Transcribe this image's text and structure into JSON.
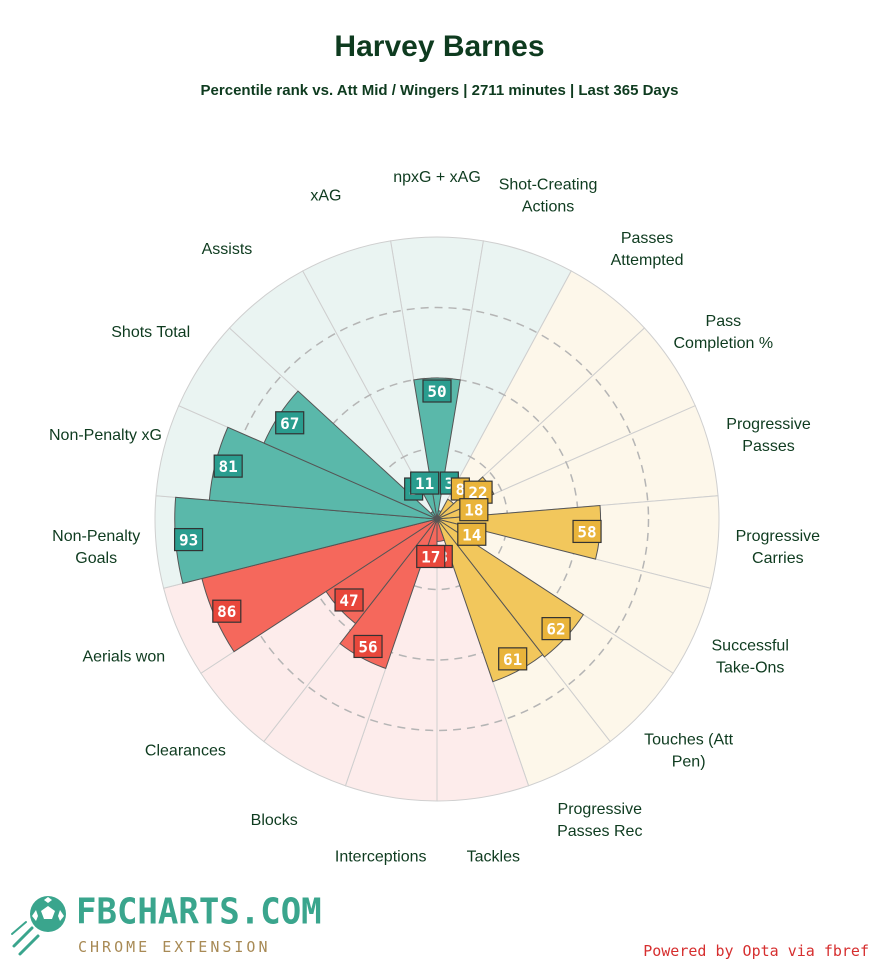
{
  "header": {
    "title": "Harvey Barnes",
    "subtitle": "Percentile rank vs. Att Mid / Wingers | 2711 minutes | Last 365 Days"
  },
  "chart_data": {
    "type": "polar-bar",
    "scale": [
      0,
      100
    ],
    "grid_rings": [
      25,
      50,
      75
    ],
    "groups": {
      "attacking": {
        "fill": "#5ab8aa",
        "bg": "#eaf4f2",
        "label_box": "#2a9d8f"
      },
      "possession": {
        "fill": "#f2c75c",
        "bg": "#fdf7ea",
        "label_box": "#e9b43b"
      },
      "defending": {
        "fill": "#f5685c",
        "bg": "#fdeceb",
        "label_box": "#e8473b"
      }
    },
    "categories": [
      {
        "label": "npxG + xAG",
        "value": 50,
        "group": "attacking"
      },
      {
        "label": "Shot-Creating\nActions",
        "value": 3,
        "group": "attacking"
      },
      {
        "label": "Passes\nAttempted",
        "value": 8,
        "group": "possession"
      },
      {
        "label": "Pass\nCompletion %",
        "value": 22,
        "group": "possession"
      },
      {
        "label": "Progressive\nPasses",
        "value": 18,
        "group": "possession"
      },
      {
        "label": "Progressive\nCarries",
        "value": 58,
        "group": "possession"
      },
      {
        "label": "Successful\nTake-Ons",
        "value": 14,
        "group": "possession"
      },
      {
        "label": "Touches (Att\nPen)",
        "value": 62,
        "group": "possession"
      },
      {
        "label": "Progressive\nPasses Rec",
        "value": 61,
        "group": "possession"
      },
      {
        "label": "Tackles",
        "value": 8,
        "group": "defending"
      },
      {
        "label": "Interceptions",
        "value": 17,
        "group": "defending"
      },
      {
        "label": "Blocks",
        "value": 56,
        "group": "defending"
      },
      {
        "label": "Clearances",
        "value": 47,
        "group": "defending"
      },
      {
        "label": "Aerials won",
        "value": 86,
        "group": "defending"
      },
      {
        "label": "Non-Penalty\nGoals",
        "value": 93,
        "group": "attacking"
      },
      {
        "label": "Non-Penalty xG",
        "value": 81,
        "group": "attacking"
      },
      {
        "label": "Shots Total",
        "value": 67,
        "group": "attacking"
      },
      {
        "label": "Assists",
        "value": 3,
        "group": "attacking"
      },
      {
        "label": "xAG",
        "value": 11,
        "group": "attacking"
      }
    ]
  },
  "branding": {
    "logo_text": "FBCHARTS.COM",
    "logo_subtext": "CHROME EXTENSION",
    "credit": "Powered by Opta via fbref"
  }
}
